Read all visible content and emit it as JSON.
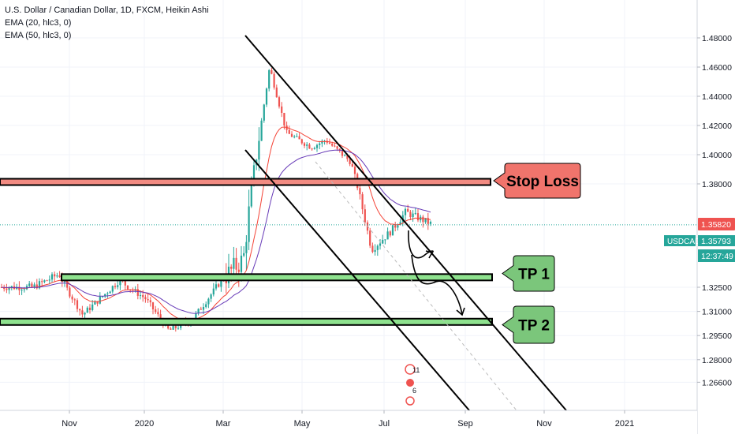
{
  "header": {
    "title": "U.S. Dollar / Canadian Dollar, 1D, FXCM, Heikin Ashi",
    "ema1": "EMA (20, hlc3, 0)",
    "ema2": "EMA (50, hlc3, 0)"
  },
  "annotations": {
    "stop_loss": "Stop Loss",
    "tp1": "TP 1",
    "tp2": "TP 2",
    "badge1": "11",
    "badge2": "6"
  },
  "price_scale": {
    "ticks": [
      "1.48000",
      "1.46000",
      "1.44000",
      "1.42000",
      "1.40000",
      "1.38000",
      "1.32500",
      "1.31000",
      "1.29500",
      "1.28000",
      "1.26600"
    ],
    "last_price": "1.35820",
    "symbol": "USDCAD",
    "symbol_price": "1.35793",
    "countdown": "12:37:49"
  },
  "colors": {
    "bull": "#26a69a",
    "bear": "#ef5350",
    "ema20": "#f44336",
    "ema50": "#673ab7",
    "stop_loss_fill": "#f28b82",
    "tp_fill": "#8ee28e",
    "label_green": "#7bc67b",
    "label_red": "#f0746c"
  },
  "chart_data": {
    "type": "candlestick",
    "style": "Heikin Ashi",
    "symbol": "USDCAD",
    "x_ticks": [
      "Nov",
      "2020",
      "Mar",
      "May",
      "Jul",
      "Sep",
      "Nov",
      "2021"
    ],
    "y_range": [
      1.263,
      1.488
    ],
    "levels": [
      {
        "name": "Stop Loss",
        "low": 1.3805,
        "high": 1.3835
      },
      {
        "name": "TP 1",
        "low": 1.329,
        "high": 1.332
      },
      {
        "name": "TP 2",
        "low": 1.3025,
        "high": 1.3055
      }
    ],
    "series": [
      {
        "name": "EMA (20, hlc3, 0)"
      },
      {
        "name": "EMA (50, hlc3, 0)"
      }
    ],
    "price_path": [
      {
        "date": "2019-09-20",
        "close": 1.325
      },
      {
        "date": "2019-10-10",
        "close": 1.332
      },
      {
        "date": "2019-10-28",
        "close": 1.308
      },
      {
        "date": "2019-11-25",
        "close": 1.329
      },
      {
        "date": "2019-12-15",
        "close": 1.318
      },
      {
        "date": "2020-01-02",
        "close": 1.298
      },
      {
        "date": "2020-01-20",
        "close": 1.305
      },
      {
        "date": "2020-02-10",
        "close": 1.328
      },
      {
        "date": "2020-02-28",
        "close": 1.34
      },
      {
        "date": "2020-03-19",
        "close": 1.46
      },
      {
        "date": "2020-04-01",
        "close": 1.415
      },
      {
        "date": "2020-04-20",
        "close": 1.405
      },
      {
        "date": "2020-05-01",
        "close": 1.41
      },
      {
        "date": "2020-05-20",
        "close": 1.395
      },
      {
        "date": "2020-06-05",
        "close": 1.345
      },
      {
        "date": "2020-06-20",
        "close": 1.355
      },
      {
        "date": "2020-07-01",
        "close": 1.365
      },
      {
        "date": "2020-07-22",
        "close": 1.3582
      }
    ]
  }
}
